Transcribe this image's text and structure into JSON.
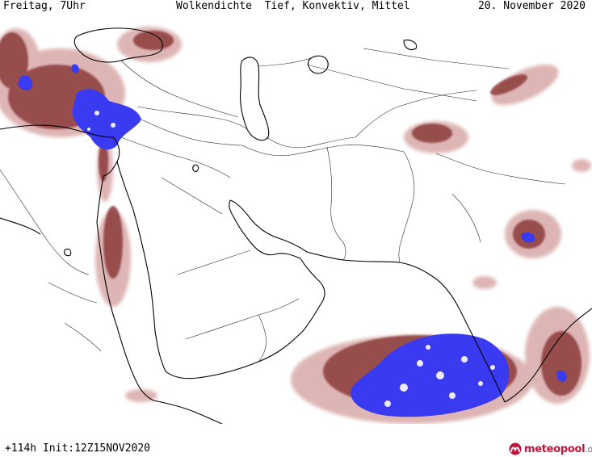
{
  "header": {
    "left": "Freitag, 7Uhr",
    "title": "Wolkendichte  Tief, Konvektiv, Mittel",
    "right": "20. November 2020"
  },
  "footer": {
    "run_info": "+114h Init:12Z15NOV2020"
  },
  "logo": {
    "brand": "meteopool",
    "suffix": ".org",
    "icon": "meteopool-logo-icon"
  },
  "colors": {
    "dense_cloud": "#3a3af0",
    "medium_cloud": "#8c3a3a",
    "light_cloud": "#d8a8a8",
    "coastline": "#000000",
    "border": "#000000",
    "background": "#ffffff",
    "logo_accent": "#c0153a"
  }
}
